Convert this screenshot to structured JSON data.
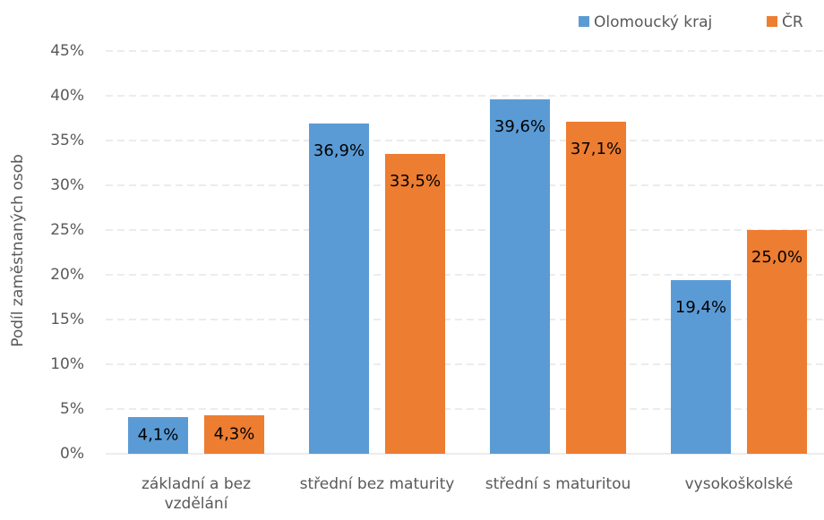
{
  "chart_data": {
    "type": "bar",
    "y_label": "Podíl zaměstnaných osob",
    "categories": [
      "základní a bez vzdělání",
      "střední bez maturity",
      "střední s maturitou",
      "vysokoškolské"
    ],
    "series": [
      {
        "name": "Olomoucký kraj",
        "color": "#5b9bd5",
        "values": [
          4.1,
          36.9,
          39.6,
          19.4
        ],
        "value_labels": [
          "4,1%",
          "36,9%",
          "39,6%",
          "19,4%"
        ]
      },
      {
        "name": "ČR",
        "color": "#ed7d31",
        "values": [
          4.3,
          33.5,
          37.1,
          25.0
        ],
        "value_labels": [
          "4,3%",
          "33,5%",
          "37,1%",
          "25,0%"
        ]
      }
    ],
    "ylim": [
      0,
      45
    ],
    "yticks": [
      {
        "value": 0,
        "label": "0%"
      },
      {
        "value": 5,
        "label": "5%"
      },
      {
        "value": 10,
        "label": "10%"
      },
      {
        "value": 15,
        "label": "15%"
      },
      {
        "value": 20,
        "label": "20%"
      },
      {
        "value": 25,
        "label": "25%"
      },
      {
        "value": 30,
        "label": "30%"
      },
      {
        "value": 35,
        "label": "35%"
      },
      {
        "value": 40,
        "label": "40%"
      },
      {
        "value": 45,
        "label": "45%"
      }
    ],
    "grid": true,
    "legend": "top-right"
  }
}
